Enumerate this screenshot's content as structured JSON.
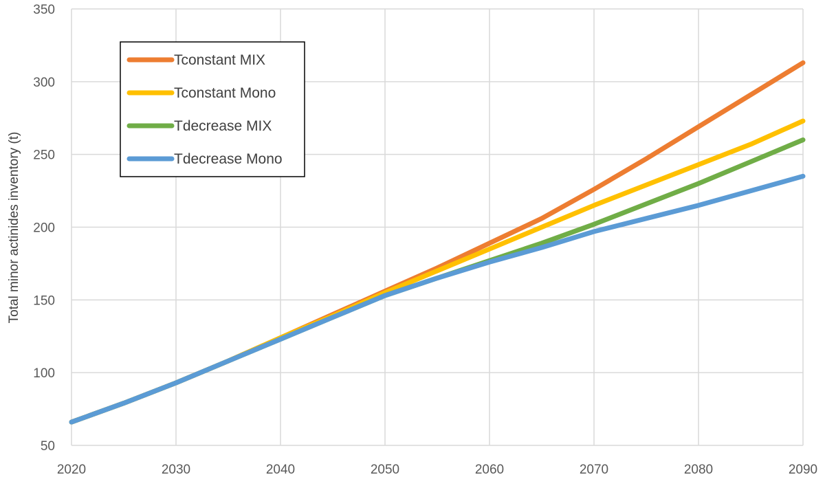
{
  "chart_data": {
    "type": "line",
    "title": "",
    "xlabel": "",
    "ylabel": "Total minor actinides inventory (t)",
    "xlim": [
      2020,
      2090
    ],
    "ylim": [
      50,
      350
    ],
    "xticks": [
      2020,
      2030,
      2040,
      2050,
      2060,
      2070,
      2080,
      2090
    ],
    "yticks": [
      50,
      100,
      150,
      200,
      250,
      300,
      350
    ],
    "grid": true,
    "legend_position": "top-left",
    "series": [
      {
        "name": "Tconstant MIX",
        "color": "#ED7D31",
        "x": [
          2020,
          2025,
          2030,
          2035,
          2040,
          2045,
          2050,
          2055,
          2060,
          2065,
          2070,
          2075,
          2080,
          2085,
          2090
        ],
        "values": [
          66,
          79,
          93,
          108,
          124,
          140,
          156,
          172,
          189,
          206,
          226,
          247,
          269,
          291,
          313
        ]
      },
      {
        "name": "Tconstant Mono",
        "color": "#FFC000",
        "x": [
          2020,
          2025,
          2030,
          2035,
          2040,
          2045,
          2050,
          2055,
          2060,
          2065,
          2070,
          2075,
          2080,
          2085,
          2090
        ],
        "values": [
          66,
          79,
          93,
          108,
          124,
          139,
          155,
          170,
          185,
          200,
          215,
          229,
          243,
          257,
          273
        ]
      },
      {
        "name": "Tdecrease MIX",
        "color": "#70AD47",
        "x": [
          2020,
          2025,
          2030,
          2035,
          2040,
          2045,
          2050,
          2055,
          2060,
          2065,
          2070,
          2075,
          2080,
          2085,
          2090
        ],
        "values": [
          66,
          79,
          93,
          108,
          123,
          138,
          153,
          165,
          177,
          189,
          202,
          216,
          230,
          245,
          260
        ]
      },
      {
        "name": "Tdecrease Mono",
        "color": "#5B9BD5",
        "x": [
          2020,
          2025,
          2030,
          2035,
          2040,
          2045,
          2050,
          2055,
          2060,
          2065,
          2070,
          2075,
          2080,
          2085,
          2090
        ],
        "values": [
          66,
          79,
          93,
          108,
          123,
          138,
          153,
          165,
          176,
          186,
          197,
          206,
          215,
          225,
          235
        ]
      }
    ]
  }
}
